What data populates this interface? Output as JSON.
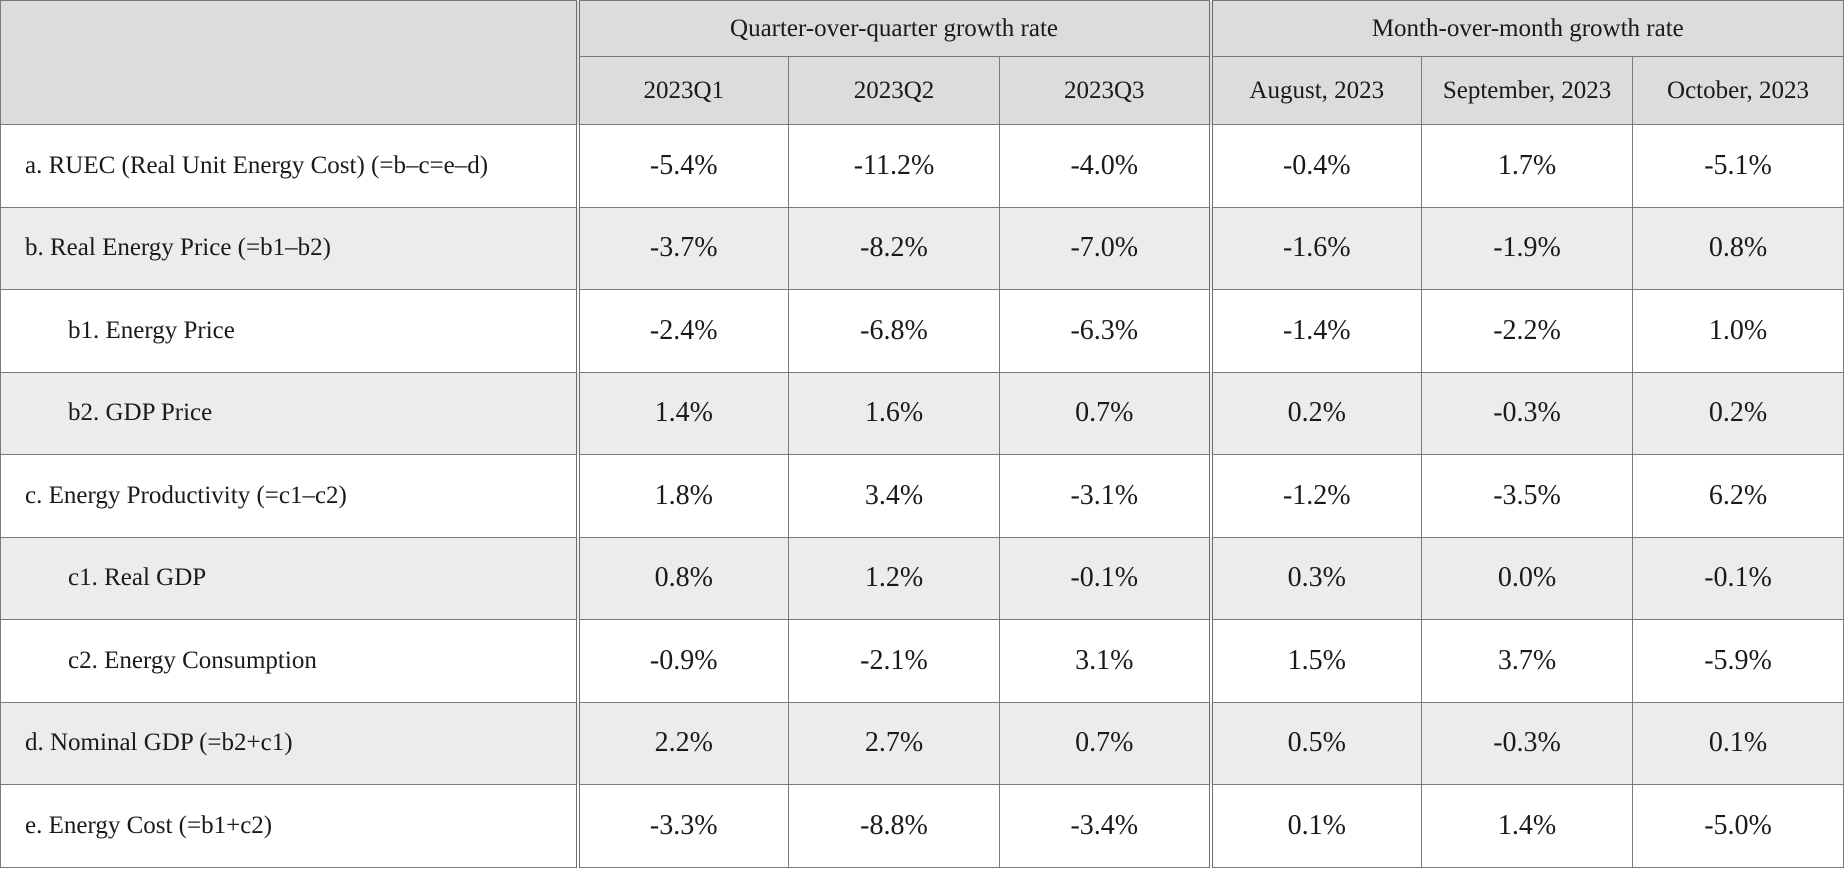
{
  "header": {
    "group_quarter": "Quarter-over-quarter growth rate",
    "group_month": "Month-over-month growth rate",
    "columns": [
      "2023Q1",
      "2023Q2",
      "2023Q3",
      "August, 2023",
      "September, 2023",
      "October, 2023"
    ]
  },
  "rows": [
    {
      "label": "a. RUEC (Real Unit Energy Cost) (=b–c=e–d)",
      "values": [
        "-5.4%",
        "-11.2%",
        "-4.0%",
        "-0.4%",
        "1.7%",
        "-5.1%"
      ]
    },
    {
      "label": "b. Real Energy Price (=b1–b2)",
      "values": [
        "-3.7%",
        "-8.2%",
        "-7.0%",
        "-1.6%",
        "-1.9%",
        "0.8%"
      ]
    },
    {
      "label": "b1. Energy Price",
      "values": [
        "-2.4%",
        "-6.8%",
        "-6.3%",
        "-1.4%",
        "-2.2%",
        "1.0%"
      ]
    },
    {
      "label": "b2. GDP Price",
      "values": [
        "1.4%",
        "1.6%",
        "0.7%",
        "0.2%",
        "-0.3%",
        "0.2%"
      ]
    },
    {
      "label": "c. Energy Productivity (=c1–c2)",
      "values": [
        "1.8%",
        "3.4%",
        "-3.1%",
        "-1.2%",
        "-3.5%",
        "6.2%"
      ]
    },
    {
      "label": "c1. Real GDP",
      "values": [
        "0.8%",
        "1.2%",
        "-0.1%",
        "0.3%",
        "0.0%",
        "-0.1%"
      ]
    },
    {
      "label": "c2. Energy Consumption",
      "values": [
        "-0.9%",
        "-2.1%",
        "3.1%",
        "1.5%",
        "3.7%",
        "-5.9%"
      ]
    },
    {
      "label": "d. Nominal GDP (=b2+c1)",
      "values": [
        "2.2%",
        "2.7%",
        "0.7%",
        "0.5%",
        "-0.3%",
        "0.1%"
      ]
    },
    {
      "label": "e. Energy Cost (=b1+c2)",
      "values": [
        "-3.3%",
        "-8.8%",
        "-3.4%",
        "0.1%",
        "1.4%",
        "-5.0%"
      ]
    }
  ]
}
